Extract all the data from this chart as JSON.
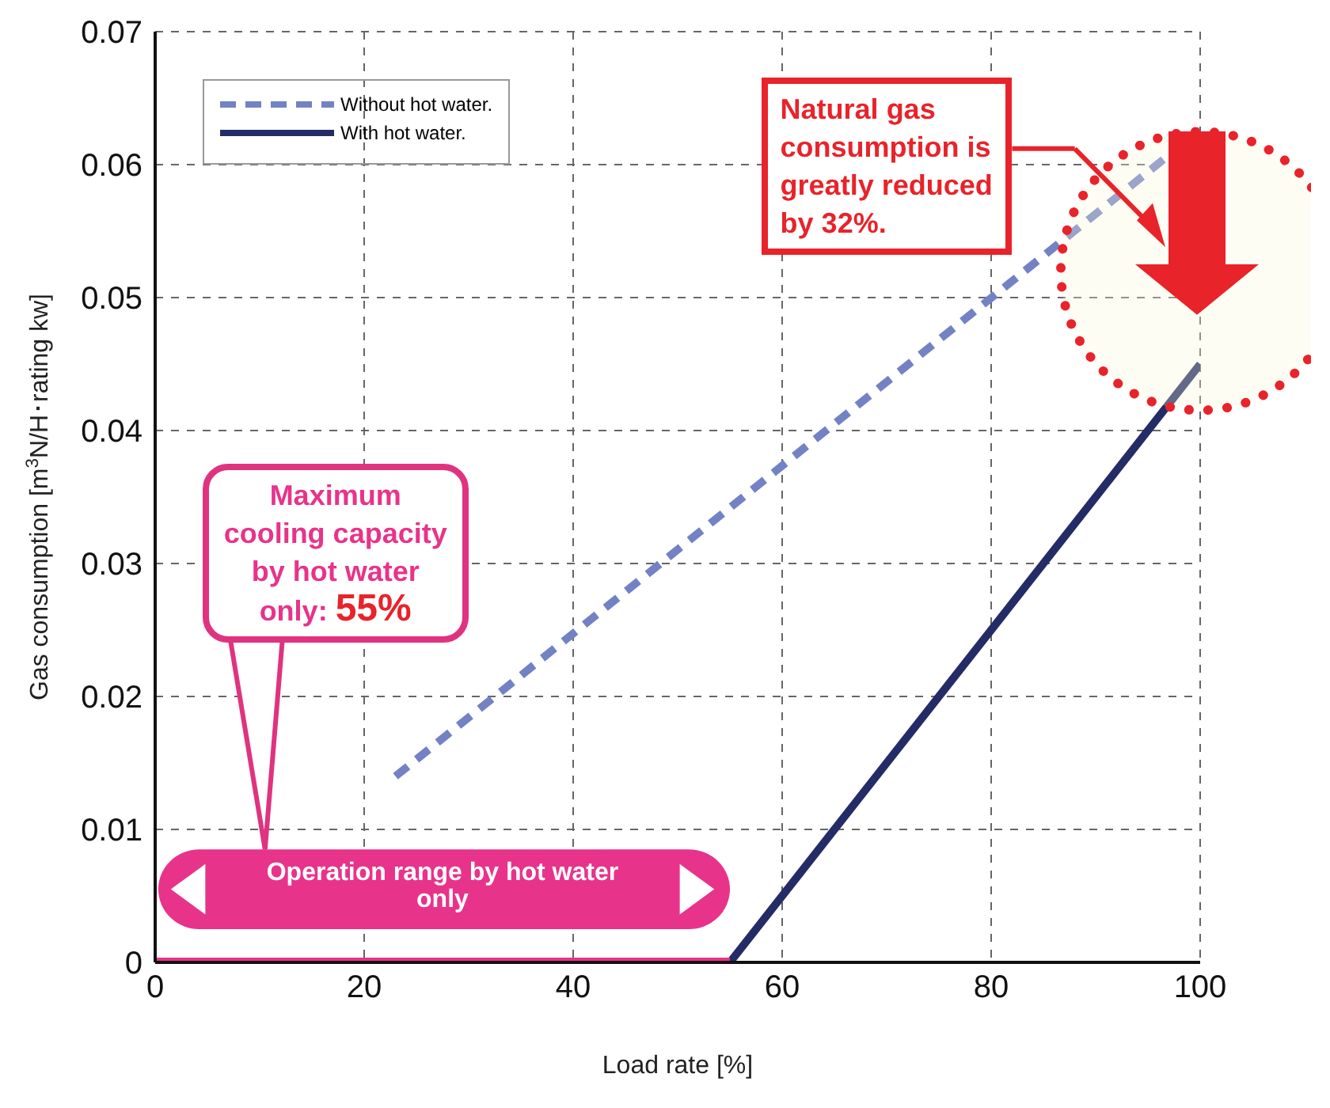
{
  "chart_data": {
    "type": "line",
    "xlabel": "Load rate [%]",
    "ylabel": "Gas consumption [m$^{3}$N/H･rating kw]",
    "xlim": [
      0,
      100
    ],
    "xticks": [
      0,
      20,
      40,
      60,
      80,
      100
    ],
    "ylim": [
      0,
      0.07
    ],
    "yticks": [
      0,
      0.01,
      0.02,
      0.03,
      0.04,
      0.05,
      0.06,
      0.07
    ],
    "grid": true,
    "legend": "top left",
    "marker": "none",
    "series": [
      {
        "name": "Without hot water.",
        "color": "#7282c4",
        "line_style": "dashed",
        "x": [
          23,
          100
        ],
        "values": [
          0.014,
          0.0626
        ]
      },
      {
        "name": "With hot water.",
        "color": "#232c66",
        "line_style": "solid",
        "x": [
          55,
          100
        ],
        "values": [
          0,
          0.045
        ]
      },
      {
        "color": "#e8338a",
        "line_style": "solid",
        "x": [
          0,
          55
        ],
        "values": [
          0,
          0
        ]
      }
    ],
    "annotations": [
      "Natural gas consumption is greatly reduced by 32%.",
      "Maximum cooling capacity by hot water only: 55%",
      "Operation range by hot water only"
    ]
  }
}
